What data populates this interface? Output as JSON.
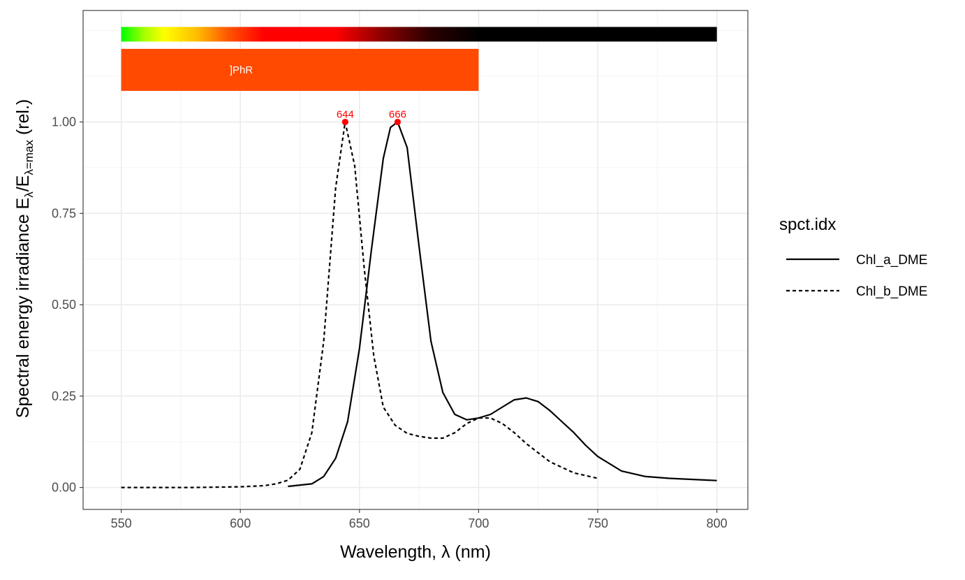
{
  "chart_data": {
    "type": "line",
    "xlabel": "Wavelength, λ (nm)",
    "ylabel": {
      "prefix": "Spectral  energy  irradiance  E",
      "sub1": "λ",
      "slash": "/E",
      "sub2": "λ=max",
      "suffix": "  (rel.)"
    },
    "xlim": [
      534,
      813
    ],
    "ylim": [
      -0.06,
      1.305
    ],
    "x_ticks": [
      550,
      600,
      650,
      700,
      750,
      800
    ],
    "y_ticks": [
      0.0,
      0.25,
      0.5,
      0.75,
      1.0
    ],
    "y_tick_labels": [
      "0.00",
      "0.25",
      "0.50",
      "0.75",
      "1.00"
    ],
    "grid": true,
    "legend": {
      "title": "spct.idx",
      "position": "right",
      "entries": [
        {
          "name": "Chl_a_DME",
          "linetype": "solid"
        },
        {
          "name": "Chl_b_DME",
          "linetype": "dashed"
        }
      ]
    },
    "series": [
      {
        "name": "Chl_a_DME",
        "linetype": "solid",
        "color": "#000000",
        "x": [
          620,
          630,
          635,
          640,
          645,
          650,
          655,
          660,
          663,
          666,
          670,
          675,
          680,
          685,
          690,
          695,
          700,
          705,
          710,
          715,
          720,
          725,
          730,
          735,
          740,
          745,
          750,
          760,
          770,
          780,
          790,
          800
        ],
        "y": [
          0.003,
          0.01,
          0.03,
          0.08,
          0.18,
          0.38,
          0.65,
          0.9,
          0.985,
          1.0,
          0.93,
          0.66,
          0.4,
          0.26,
          0.2,
          0.185,
          0.19,
          0.2,
          0.22,
          0.24,
          0.245,
          0.235,
          0.21,
          0.18,
          0.15,
          0.115,
          0.085,
          0.045,
          0.03,
          0.025,
          0.022,
          0.019
        ]
      },
      {
        "name": "Chl_b_DME",
        "linetype": "dashed",
        "color": "#000000",
        "x": [
          550,
          580,
          600,
          610,
          615,
          620,
          625,
          630,
          635,
          640,
          644,
          648,
          652,
          656,
          660,
          665,
          670,
          675,
          680,
          685,
          690,
          695,
          700,
          705,
          710,
          715,
          720,
          725,
          730,
          740,
          750
        ],
        "y": [
          0.0,
          0.0,
          0.002,
          0.005,
          0.01,
          0.02,
          0.05,
          0.15,
          0.4,
          0.82,
          1.0,
          0.88,
          0.6,
          0.36,
          0.22,
          0.17,
          0.148,
          0.14,
          0.135,
          0.135,
          0.15,
          0.175,
          0.19,
          0.19,
          0.175,
          0.15,
          0.12,
          0.095,
          0.07,
          0.04,
          0.025
        ]
      }
    ],
    "peaks": [
      {
        "x": 644,
        "y": 1.0,
        "label": "644"
      },
      {
        "x": 666,
        "y": 1.0,
        "label": "666"
      }
    ],
    "wavelength_color_bar": {
      "x_range": [
        550,
        800
      ],
      "y_range": [
        1.22,
        1.26
      ],
      "stops": [
        {
          "wl": 550,
          "color": "#00ff00"
        },
        {
          "wl": 560,
          "color": "#aaff00"
        },
        {
          "wl": 568,
          "color": "#ffff00"
        },
        {
          "wl": 582,
          "color": "#ffbb00"
        },
        {
          "wl": 595,
          "color": "#ff5500"
        },
        {
          "wl": 610,
          "color": "#ff0000"
        },
        {
          "wl": 640,
          "color": "#ff0000"
        },
        {
          "wl": 660,
          "color": "#8a0000"
        },
        {
          "wl": 680,
          "color": "#2a0000"
        },
        {
          "wl": 700,
          "color": "#000000"
        },
        {
          "wl": 800,
          "color": "#000000"
        }
      ]
    },
    "waveband": {
      "label": "]PhR",
      "x_range": [
        550,
        700
      ],
      "y_range": [
        1.085,
        1.2
      ],
      "color": "#ff4a00"
    }
  }
}
